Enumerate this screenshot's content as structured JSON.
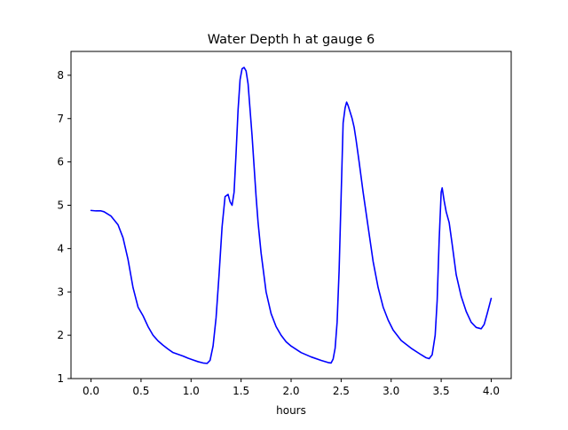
{
  "chart_data": {
    "type": "line",
    "title": "Water Depth h at gauge 6",
    "xlabel": "hours",
    "ylabel": "",
    "xlim": [
      -0.2,
      4.2
    ],
    "ylim": [
      1,
      8.55
    ],
    "xticks": [
      0.0,
      0.5,
      1.0,
      1.5,
      2.0,
      2.5,
      3.0,
      3.5,
      4.0
    ],
    "xtick_labels": [
      "0.0",
      "0.5",
      "1.0",
      "1.5",
      "2.0",
      "2.5",
      "3.0",
      "3.5",
      "4.0"
    ],
    "yticks": [
      1,
      2,
      3,
      4,
      5,
      6,
      7,
      8
    ],
    "ytick_labels": [
      "1",
      "2",
      "3",
      "4",
      "5",
      "6",
      "7",
      "8"
    ],
    "grid": false,
    "legend": "none",
    "series": [
      {
        "color": "#0000ff",
        "x": [
          0.0,
          0.05,
          0.1,
          0.13,
          0.2,
          0.27,
          0.32,
          0.37,
          0.42,
          0.47,
          0.52,
          0.57,
          0.62,
          0.67,
          0.72,
          0.77,
          0.82,
          0.87,
          0.92,
          0.97,
          1.02,
          1.07,
          1.12,
          1.16,
          1.19,
          1.22,
          1.25,
          1.28,
          1.31,
          1.34,
          1.37,
          1.39,
          1.41,
          1.43,
          1.45,
          1.47,
          1.49,
          1.51,
          1.53,
          1.55,
          1.57,
          1.59,
          1.61,
          1.63,
          1.65,
          1.67,
          1.7,
          1.75,
          1.8,
          1.85,
          1.9,
          1.95,
          2.0,
          2.1,
          2.2,
          2.3,
          2.37,
          2.4,
          2.42,
          2.44,
          2.46,
          2.48,
          2.5,
          2.52,
          2.54,
          2.555,
          2.57,
          2.59,
          2.61,
          2.63,
          2.65,
          2.68,
          2.72,
          2.77,
          2.82,
          2.87,
          2.92,
          2.97,
          3.02,
          3.1,
          3.2,
          3.3,
          3.35,
          3.38,
          3.41,
          3.44,
          3.46,
          3.48,
          3.5,
          3.51,
          3.53,
          3.55,
          3.58,
          3.61,
          3.65,
          3.7,
          3.75,
          3.8,
          3.85,
          3.9,
          3.93,
          3.96,
          4.0
        ],
        "y": [
          4.88,
          4.87,
          4.87,
          4.85,
          4.75,
          4.55,
          4.25,
          3.75,
          3.1,
          2.65,
          2.45,
          2.2,
          2.0,
          1.87,
          1.77,
          1.68,
          1.6,
          1.56,
          1.52,
          1.47,
          1.43,
          1.39,
          1.36,
          1.35,
          1.42,
          1.75,
          2.4,
          3.4,
          4.5,
          5.2,
          5.25,
          5.08,
          5.0,
          5.3,
          6.2,
          7.2,
          7.9,
          8.15,
          8.18,
          8.1,
          7.8,
          7.2,
          6.6,
          5.9,
          5.2,
          4.6,
          3.9,
          3.0,
          2.5,
          2.2,
          2.0,
          1.85,
          1.75,
          1.6,
          1.5,
          1.42,
          1.37,
          1.36,
          1.45,
          1.7,
          2.3,
          3.5,
          5.2,
          6.9,
          7.25,
          7.38,
          7.3,
          7.15,
          7.0,
          6.8,
          6.5,
          6.0,
          5.3,
          4.5,
          3.7,
          3.1,
          2.65,
          2.35,
          2.12,
          1.88,
          1.7,
          1.55,
          1.48,
          1.46,
          1.55,
          2.0,
          2.8,
          4.2,
          5.3,
          5.4,
          5.1,
          4.85,
          4.6,
          4.1,
          3.4,
          2.9,
          2.55,
          2.3,
          2.18,
          2.15,
          2.25,
          2.5,
          2.85
        ]
      }
    ]
  }
}
